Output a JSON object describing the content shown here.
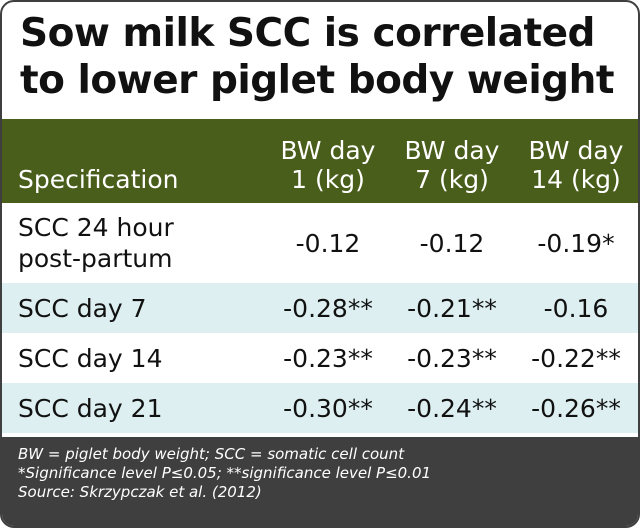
{
  "title": {
    "line1": "Sow milk SCC is correlated",
    "line2": "to lower piglet body weight"
  },
  "chart_data": {
    "type": "table",
    "columns": [
      "Specification",
      "BW day 1 (kg)",
      "BW day 7 (kg)",
      "BW day 14 (kg)"
    ],
    "header": {
      "spec": "Specification",
      "col1": {
        "line1": "BW day",
        "line2": "1 (kg)"
      },
      "col2": {
        "line1": "BW day",
        "line2": "7 (kg)"
      },
      "col3": {
        "line1": "BW day",
        "line2": "14 (kg)"
      }
    },
    "rows": [
      {
        "label_line1": "SCC 24 hour",
        "label_line2": "post-partum",
        "values": [
          "-0.12",
          "-0.12",
          "-0.19*"
        ]
      },
      {
        "label": "SCC day 7",
        "values": [
          "-0.28**",
          "-0.21**",
          "-0.16"
        ]
      },
      {
        "label": "SCC day 14",
        "values": [
          "-0.23**",
          "-0.23**",
          "-0.22**"
        ]
      },
      {
        "label": "SCC day 21",
        "values": [
          "-0.30**",
          "-0.24**",
          "-0.26**"
        ]
      }
    ]
  },
  "footnote": {
    "line1": "BW = piglet body weight; SCC = somatic cell count",
    "line2": "*Significance level P≤0.05; **significance level P≤0.01",
    "line3": "Source: Skrzypczak et al. (2012)"
  },
  "colors": {
    "header_bg": "#4a5e1c",
    "row_shade": "#ddeff0",
    "footer_bg": "#3f3f3f",
    "border": "#3f3f3f"
  }
}
